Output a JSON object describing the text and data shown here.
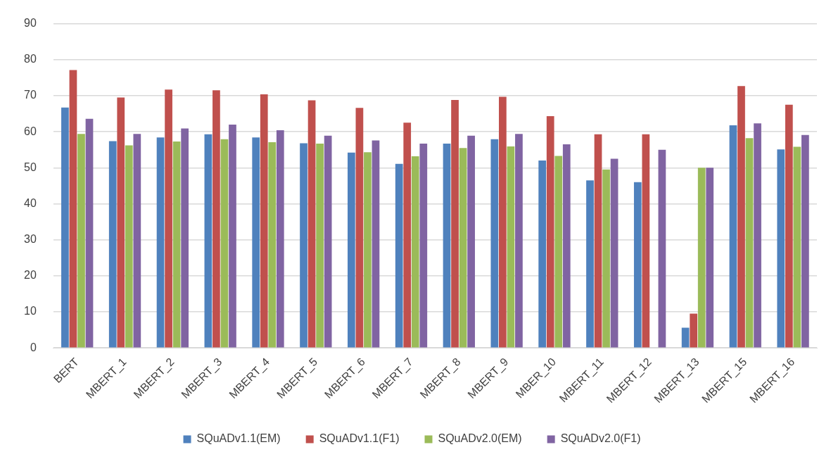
{
  "chart_data": {
    "type": "bar",
    "categories": [
      "BERT",
      "MBERT_1",
      "MBERT_2",
      "MBERT_3",
      "MBERT_4",
      "MBERT_5",
      "MBERT_6",
      "MBERT_7",
      "MBERT_8",
      "MBERT_9",
      "MBER_10",
      "MBERT_11",
      "MBERT_12",
      "MBERT_13",
      "MBERT_15",
      "MBERT_16"
    ],
    "series": [
      {
        "name": "SQuADv1.1(EM)",
        "color": "#4f81bd",
        "values": [
          66.7,
          57.4,
          58.4,
          59.3,
          58.4,
          56.8,
          54.2,
          51.1,
          56.7,
          57.9,
          52.0,
          46.5,
          46.0,
          5.6,
          61.8,
          55.1
        ]
      },
      {
        "name": "SQuADv1.1(F1)",
        "color": "#c0504d",
        "values": [
          77.1,
          69.5,
          71.7,
          71.5,
          70.4,
          68.7,
          66.6,
          62.5,
          68.8,
          69.7,
          64.3,
          59.3,
          59.3,
          9.5,
          72.7,
          67.5
        ]
      },
      {
        "name": "SQuADv2.0(EM)",
        "color": "#9bbb59",
        "values": [
          59.4,
          56.2,
          57.3,
          57.9,
          57.1,
          56.7,
          54.3,
          53.2,
          55.5,
          55.9,
          53.3,
          49.5,
          null,
          50.0,
          58.2,
          55.8
        ]
      },
      {
        "name": "SQuADv2.0(F1)",
        "color": "#8064a2",
        "values": [
          63.6,
          59.4,
          60.9,
          62.0,
          60.4,
          58.9,
          57.6,
          56.7,
          58.9,
          59.4,
          56.5,
          52.5,
          55.0,
          50.0,
          62.3,
          59.1
        ]
      }
    ],
    "ylim": [
      0,
      90
    ],
    "yticks": [
      0,
      10,
      20,
      30,
      40,
      50,
      60,
      70,
      80,
      90
    ],
    "grid": "y",
    "legend": "bottom"
  }
}
